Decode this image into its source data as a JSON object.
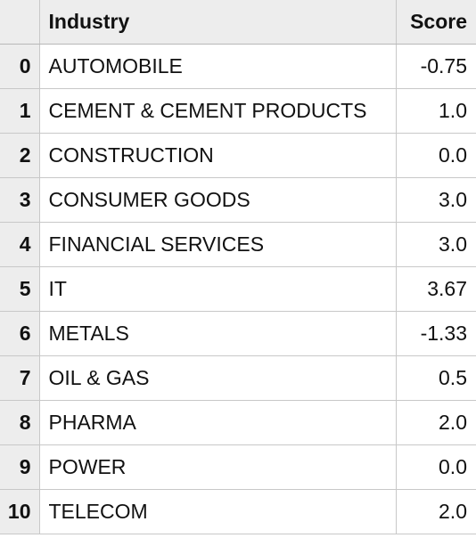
{
  "table": {
    "index_header": "",
    "columns": [
      "Industry",
      "Score"
    ],
    "rows": [
      {
        "index": "0",
        "industry": "AUTOMOBILE",
        "score": "-0.75"
      },
      {
        "index": "1",
        "industry": "CEMENT & CEMENT PRODUCTS",
        "score": "1.0"
      },
      {
        "index": "2",
        "industry": "CONSTRUCTION",
        "score": "0.0"
      },
      {
        "index": "3",
        "industry": "CONSUMER GOODS",
        "score": "3.0"
      },
      {
        "index": "4",
        "industry": "FINANCIAL SERVICES",
        "score": "3.0"
      },
      {
        "index": "5",
        "industry": "IT",
        "score": "3.67"
      },
      {
        "index": "6",
        "industry": "METALS",
        "score": "-1.33"
      },
      {
        "index": "7",
        "industry": "OIL & GAS",
        "score": "0.5"
      },
      {
        "index": "8",
        "industry": "PHARMA",
        "score": "2.0"
      },
      {
        "index": "9",
        "industry": "POWER",
        "score": "0.0"
      },
      {
        "index": "10",
        "industry": "TELECOM",
        "score": "2.0"
      }
    ]
  }
}
